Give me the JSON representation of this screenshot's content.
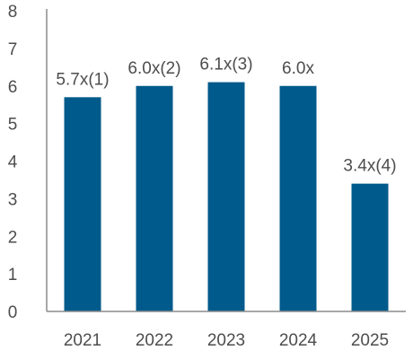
{
  "chart_data": {
    "type": "bar",
    "categories": [
      "2021",
      "2022",
      "2023",
      "2024",
      "2025"
    ],
    "values": [
      5.7,
      6.0,
      6.1,
      6.0,
      3.4
    ],
    "data_labels": [
      "5.7x(1)",
      "6.0x(2)",
      "6.1x(3)",
      "6.0x",
      "3.4x(4)"
    ],
    "ylim": [
      0,
      8
    ],
    "yticks": [
      0,
      1,
      2,
      3,
      4,
      5,
      6,
      7,
      8
    ],
    "title": "",
    "xlabel": "",
    "ylabel": "",
    "grid": false,
    "bar_color": "#005a8b",
    "axis_color": "#8c8c8c"
  }
}
